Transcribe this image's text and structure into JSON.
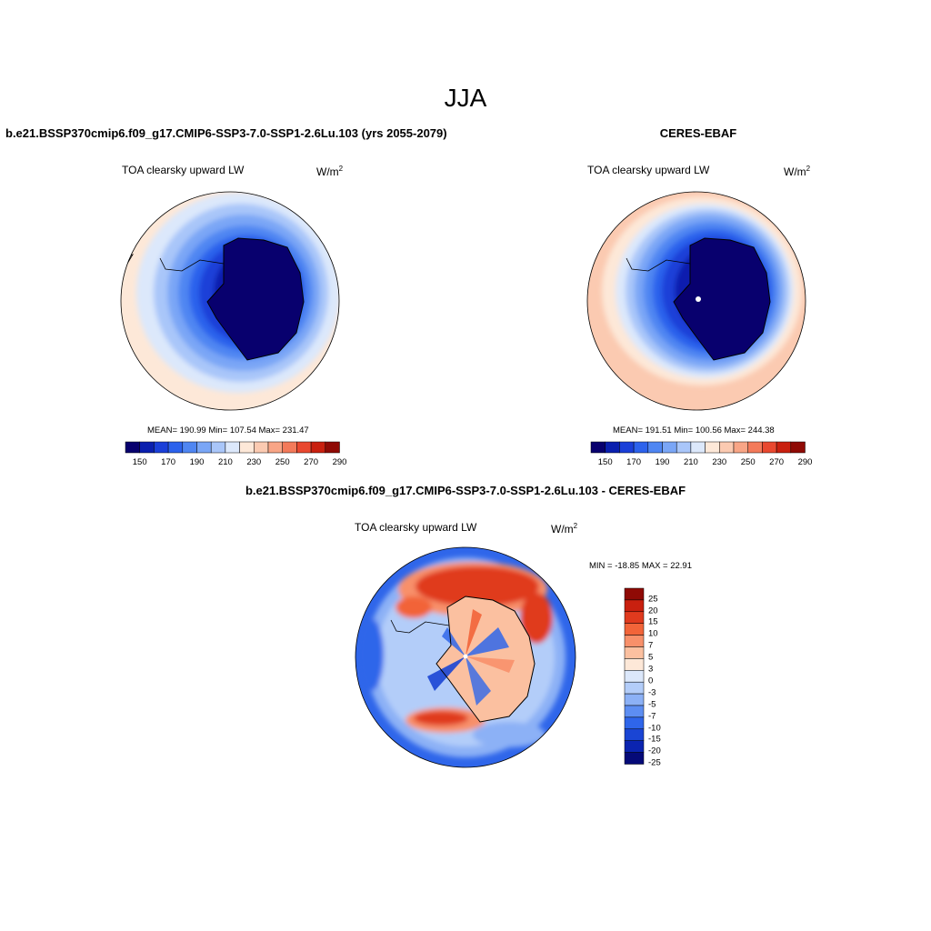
{
  "figure": {
    "title": "JJA",
    "left_panel": {
      "title": "b.e21.BSSP370cmip6.f09_g17.CMIP6-SSP3-7.0-SSP1-2.6Lu.103 (yrs 2055-2079)",
      "variable": "TOA clearsky upward LW",
      "units": "W/m",
      "units_sup": "2",
      "stats": "MEAN= 190.99  Min= 107.54  Max= 231.47"
    },
    "right_panel": {
      "title": "CERES-EBAF",
      "variable": "TOA clearsky upward LW",
      "units": "W/m",
      "units_sup": "2",
      "stats": "MEAN= 191.51  Min= 100.56  Max= 244.38"
    },
    "diff_panel": {
      "title": "b.e21.BSSP370cmip6.f09_g17.CMIP6-SSP3-7.0-SSP1-2.6Lu.103 - CERES-EBAF",
      "variable": "TOA clearsky upward LW",
      "units": "W/m",
      "units_sup": "2",
      "stats": "MIN = -18.85 MAX =  22.91"
    },
    "abs_colorbar": {
      "colors": [
        "#08006e",
        "#0a1fae",
        "#1a3fd8",
        "#2c62ec",
        "#4f86f2",
        "#7aa6f6",
        "#a9c6f9",
        "#dce8fb",
        "#fde8d8",
        "#fbcab1",
        "#f8a586",
        "#f37a5a",
        "#e9482f",
        "#c9200f",
        "#8f0a05"
      ],
      "labels": [
        "150",
        "170",
        "190",
        "210",
        "230",
        "250",
        "270",
        "290"
      ]
    },
    "diff_colorbar": {
      "colors": [
        "#8f0a05",
        "#c9200f",
        "#e03a1e",
        "#f26439",
        "#f8906a",
        "#fbc0a0",
        "#fde8d8",
        "#dce8fb",
        "#b3cdf9",
        "#8cb1f6",
        "#5d8ef2",
        "#2f66ea",
        "#1a45d4",
        "#0b24b0",
        "#050a78"
      ],
      "labels": [
        "25",
        "20",
        "15",
        "10",
        "7",
        "5",
        "3",
        "0",
        "-3",
        "-5",
        "-7",
        "-10",
        "-15",
        "-20",
        "-25"
      ]
    }
  }
}
